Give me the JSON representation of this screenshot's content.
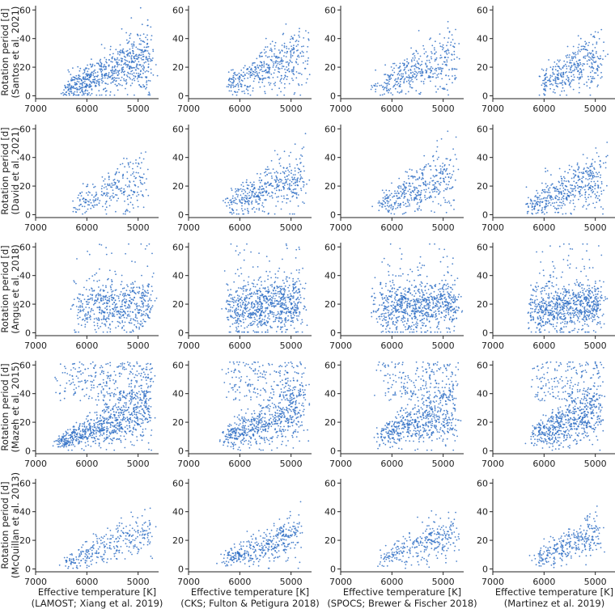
{
  "chart_data": {
    "type": "scatter",
    "layout": "5x4 grid of scatter panels",
    "point_color": "#2f6fc4",
    "x_axis": {
      "quantity": "Effective temperature [K]",
      "lim": [
        7000,
        4600
      ],
      "inverted": true,
      "ticks": [
        7000,
        6000,
        5000
      ],
      "tick_labels": [
        "7000",
        "6000",
        "5000"
      ]
    },
    "y_axis": {
      "quantity": "Rotation period [d]",
      "lim": [
        -2,
        63
      ],
      "ticks": [
        0,
        20,
        40,
        60
      ],
      "tick_labels": [
        "0",
        "20",
        "40",
        "60"
      ]
    },
    "rows": [
      {
        "ylabel": "Rotation period [d]",
        "ylabel2": "(Santos et al. 2021)"
      },
      {
        "ylabel": "Rotation period [d]",
        "ylabel2": "(David et al. 2021)"
      },
      {
        "ylabel": "Rotation period [d]",
        "ylabel2": "(Angus et al. 2018)"
      },
      {
        "ylabel": "Rotation period [d]",
        "ylabel2": "(Mazeh et al. 2015)"
      },
      {
        "ylabel": "Rotation period [d]",
        "ylabel2": "(McQuillan et al. 2013)"
      }
    ],
    "cols": [
      {
        "xlabel": "Effective temperature [K]",
        "xlabel2": "(LAMOST; Xiang et al. 2019)"
      },
      {
        "xlabel": "Effective temperature [K]",
        "xlabel2": "(CKS; Fulton & Petigura 2018)"
      },
      {
        "xlabel": "Effective temperature [K]",
        "xlabel2": "(SPOCS; Brewer & Fischer 2018)"
      },
      {
        "xlabel": "Effective temperature [K]",
        "xlabel2": "(Martinez et al. 2019)"
      }
    ],
    "panels": [
      {
        "row": 0,
        "col": 0,
        "n": 700,
        "teff_range": [
          6700,
          4750
        ],
        "pattern": "gyro"
      },
      {
        "row": 0,
        "col": 1,
        "n": 420,
        "teff_range": [
          6500,
          4700
        ],
        "pattern": "gyro"
      },
      {
        "row": 0,
        "col": 2,
        "n": 380,
        "teff_range": [
          6600,
          4750
        ],
        "pattern": "gyro"
      },
      {
        "row": 0,
        "col": 3,
        "n": 360,
        "teff_range": [
          6300,
          4850
        ],
        "pattern": "gyro"
      },
      {
        "row": 1,
        "col": 0,
        "n": 260,
        "teff_range": [
          6450,
          4850
        ],
        "pattern": "gyro"
      },
      {
        "row": 1,
        "col": 1,
        "n": 420,
        "teff_range": [
          6500,
          4750
        ],
        "pattern": "gyro"
      },
      {
        "row": 1,
        "col": 2,
        "n": 380,
        "teff_range": [
          6500,
          4800
        ],
        "pattern": "gyro"
      },
      {
        "row": 1,
        "col": 3,
        "n": 440,
        "teff_range": [
          6600,
          4850
        ],
        "pattern": "gyro"
      },
      {
        "row": 2,
        "col": 0,
        "n": 560,
        "teff_range": [
          6500,
          4750
        ],
        "pattern": "spread"
      },
      {
        "row": 2,
        "col": 1,
        "n": 800,
        "teff_range": [
          6500,
          4800
        ],
        "pattern": "spread"
      },
      {
        "row": 2,
        "col": 2,
        "n": 800,
        "teff_range": [
          6600,
          4750
        ],
        "pattern": "spread"
      },
      {
        "row": 2,
        "col": 3,
        "n": 780,
        "teff_range": [
          6500,
          4900
        ],
        "pattern": "spread"
      },
      {
        "row": 3,
        "col": 0,
        "n": 1050,
        "teff_range": [
          6900,
          4750
        ],
        "pattern": "mazeh"
      },
      {
        "row": 3,
        "col": 1,
        "n": 800,
        "teff_range": [
          6600,
          4750
        ],
        "pattern": "mazeh"
      },
      {
        "row": 3,
        "col": 2,
        "n": 760,
        "teff_range": [
          6500,
          4750
        ],
        "pattern": "mazeh"
      },
      {
        "row": 3,
        "col": 3,
        "n": 760,
        "teff_range": [
          6450,
          4900
        ],
        "pattern": "mazeh"
      },
      {
        "row": 4,
        "col": 0,
        "n": 300,
        "teff_range": [
          6700,
          4750
        ],
        "pattern": "gyro_low"
      },
      {
        "row": 4,
        "col": 1,
        "n": 380,
        "teff_range": [
          6600,
          4800
        ],
        "pattern": "gyro_low"
      },
      {
        "row": 4,
        "col": 2,
        "n": 300,
        "teff_range": [
          6500,
          4750
        ],
        "pattern": "gyro_low"
      },
      {
        "row": 4,
        "col": 3,
        "n": 300,
        "teff_range": [
          6400,
          4900
        ],
        "pattern": "gyro_low"
      }
    ]
  }
}
